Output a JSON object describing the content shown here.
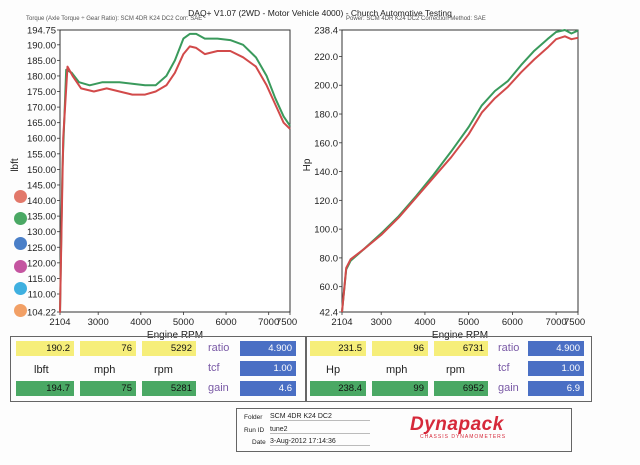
{
  "header": {
    "title": "DAQ+ V1.07 (2WD - Motor Vehicle 4000) - Church Automotive Testing",
    "left_info": "Torque (Axle Torque ÷ Gear Ratio): SCM 4DR K24 DC2    Corr: SAE",
    "right_info": "Power: SCM 4DR K24 DC2    Correction Method: SAE"
  },
  "chart_data": [
    {
      "type": "line",
      "xlabel": "Engine RPM",
      "ylabel": "lbft",
      "xlim": [
        2104,
        7500
      ],
      "ylim": [
        104.22,
        194.75
      ],
      "x_ticks": [
        "2104",
        "3000",
        "4000",
        "5000",
        "6000",
        "7000",
        "7500"
      ],
      "y_ticks": [
        "194.75",
        "190.00",
        "185.00",
        "180.00",
        "175.00",
        "170.00",
        "165.00",
        "160.00",
        "155.00",
        "150.00",
        "145.00",
        "140.00",
        "135.00",
        "130.00",
        "125.00",
        "120.00",
        "115.00",
        "110.00",
        "104.22"
      ],
      "series": [
        {
          "color": "#3a9a5c",
          "points": [
            [
              2104,
              104
            ],
            [
              2160,
              150
            ],
            [
              2250,
              182
            ],
            [
              2380,
              181
            ],
            [
              2550,
              178
            ],
            [
              2800,
              177
            ],
            [
              3100,
              178
            ],
            [
              3500,
              178
            ],
            [
              3800,
              177.5
            ],
            [
              4100,
              177
            ],
            [
              4350,
              177
            ],
            [
              4600,
              180
            ],
            [
              4800,
              185
            ],
            [
              5000,
              192
            ],
            [
              5150,
              193.5
            ],
            [
              5300,
              193.5
            ],
            [
              5500,
              192
            ],
            [
              5800,
              192
            ],
            [
              6100,
              191.5
            ],
            [
              6400,
              190
            ],
            [
              6700,
              186
            ],
            [
              6950,
              180
            ],
            [
              7150,
              173
            ],
            [
              7350,
              167
            ],
            [
              7500,
              164
            ]
          ]
        },
        {
          "color": "#d24a4a",
          "points": [
            [
              2104,
              104
            ],
            [
              2180,
              160
            ],
            [
              2280,
              183
            ],
            [
              2400,
              180
            ],
            [
              2600,
              176
            ],
            [
              2900,
              175
            ],
            [
              3200,
              176
            ],
            [
              3500,
              175
            ],
            [
              3800,
              174
            ],
            [
              4100,
              174
            ],
            [
              4350,
              175
            ],
            [
              4600,
              177
            ],
            [
              4800,
              181
            ],
            [
              5000,
              187
            ],
            [
              5150,
              189.5
            ],
            [
              5300,
              189
            ],
            [
              5500,
              187
            ],
            [
              5800,
              188
            ],
            [
              6100,
              188
            ],
            [
              6400,
              186
            ],
            [
              6700,
              183
            ],
            [
              6950,
              177
            ],
            [
              7150,
              171
            ],
            [
              7350,
              165
            ],
            [
              7500,
              163
            ]
          ]
        }
      ]
    },
    {
      "type": "line",
      "xlabel": "Engine RPM",
      "ylabel": "Hp",
      "xlim": [
        2104,
        7500
      ],
      "ylim": [
        42.4,
        238.4
      ],
      "x_ticks": [
        "2104",
        "3000",
        "4000",
        "5000",
        "6000",
        "7000",
        "7500"
      ],
      "y_ticks": [
        "238.4",
        "220.0",
        "200.0",
        "180.0",
        "160.0",
        "140.0",
        "120.0",
        "100.0",
        "80.0",
        "60.0",
        "42.4"
      ],
      "series": [
        {
          "color": "#3a9a5c",
          "points": [
            [
              2104,
              42.4
            ],
            [
              2200,
              72
            ],
            [
              2300,
              78
            ],
            [
              2600,
              86
            ],
            [
              3000,
              97
            ],
            [
              3400,
              109
            ],
            [
              3800,
              123
            ],
            [
              4200,
              138
            ],
            [
              4600,
              154
            ],
            [
              5000,
              171
            ],
            [
              5300,
              186
            ],
            [
              5600,
              196
            ],
            [
              5900,
              203
            ],
            [
              6200,
              214
            ],
            [
              6500,
              224
            ],
            [
              6800,
              232
            ],
            [
              7000,
              237
            ],
            [
              7200,
              238.4
            ],
            [
              7350,
              236
            ],
            [
              7500,
              238
            ]
          ]
        },
        {
          "color": "#d24a4a",
          "points": [
            [
              2104,
              42.4
            ],
            [
              2200,
              73
            ],
            [
              2300,
              79
            ],
            [
              2600,
              86
            ],
            [
              3000,
              96
            ],
            [
              3400,
              108
            ],
            [
              3800,
              122
            ],
            [
              4200,
              136
            ],
            [
              4600,
              150
            ],
            [
              5000,
              166
            ],
            [
              5300,
              181
            ],
            [
              5600,
              191
            ],
            [
              5900,
              199
            ],
            [
              6200,
              209
            ],
            [
              6500,
              218
            ],
            [
              6800,
              226
            ],
            [
              7000,
              232
            ],
            [
              7200,
              234
            ],
            [
              7350,
              232
            ],
            [
              7500,
              233
            ]
          ]
        }
      ]
    }
  ],
  "left_readout": {
    "row1": {
      "v1": "190.2",
      "v2": "76",
      "v3": "5292",
      "label": "ratio",
      "v4": "4.900"
    },
    "row2": {
      "label": "tcf",
      "v4": "1.00"
    },
    "row3": {
      "l1": "lbft",
      "l2": "mph",
      "l3": "rpm"
    },
    "row4": {
      "v1": "194.7",
      "v2": "75",
      "v3": "5281",
      "label": "gain",
      "v4": "4.6"
    }
  },
  "right_readout": {
    "row1": {
      "v1": "231.5",
      "v2": "96",
      "v3": "6731",
      "label": "ratio",
      "v4": "4.900"
    },
    "row2": {
      "label": "tcf",
      "v4": "1.00"
    },
    "row3": {
      "l1": "Hp",
      "l2": "mph",
      "l3": "rpm"
    },
    "row4": {
      "v1": "238.4",
      "v2": "99",
      "v3": "6952",
      "label": "gain",
      "v4": "6.9"
    }
  },
  "info": {
    "folder_label": "Folder",
    "folder": "SCM 4DR K24 DC2",
    "run_label": "Run ID",
    "run": "tune2",
    "date_label": "Date",
    "date": "3-Aug-2012 17:14:36"
  },
  "logo": {
    "name": "Dynapack",
    "tagline": "CHASSIS DYNAMOMETERS"
  },
  "legend_dot_colors": [
    "#e2786a",
    "#4aa864",
    "#4a7fc8",
    "#c455a0",
    "#3fb0e0",
    "#f2a066"
  ]
}
